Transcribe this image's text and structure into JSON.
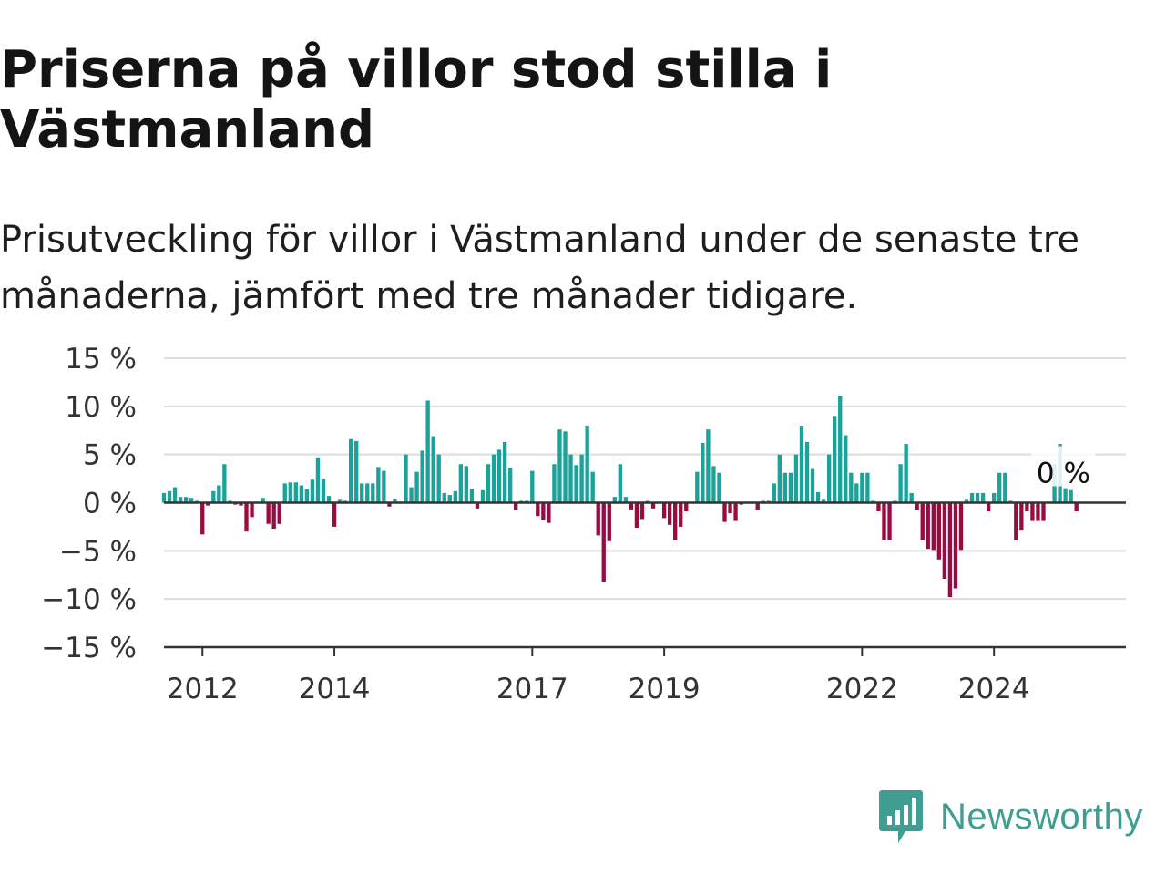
{
  "title": "Priserna på villor stod stilla i Västmanland",
  "subtitle": "Prisutveckling för villor i Västmanland under de senaste tre månaderna, jämfört med tre månader tidigare.",
  "brand": {
    "name": "Newsworthy",
    "color": "#3f9d92",
    "icon": "newsworthy-logo-icon"
  },
  "colors": {
    "positive": "#19a39a",
    "negative": "#9b0b3f",
    "grid": "#dddddd",
    "axis": "#333333"
  },
  "chart_data": {
    "type": "bar",
    "ylim": [
      -15,
      15
    ],
    "y_ticks": [
      "15 %",
      "10 %",
      "5 %",
      "0 %",
      "−5 %",
      "−10 %",
      "−15 %"
    ],
    "y_tick_values": [
      15,
      10,
      5,
      0,
      -5,
      -10,
      -15
    ],
    "x_ticks": [
      "2012",
      "2014",
      "2017",
      "2019",
      "2022",
      "2024"
    ],
    "x_tick_positions": [
      2012.0,
      2014.0,
      2017.0,
      2019.0,
      2022.0,
      2024.0
    ],
    "x_start": 2011.4167,
    "bar_step_months": 1,
    "grid": true,
    "annotation": {
      "text": "0 %",
      "x": 2024.6667,
      "y": 0
    },
    "values": [
      1.0,
      1.2,
      1.6,
      0.6,
      0.6,
      0.5,
      0.2,
      -3.3,
      -0.3,
      1.2,
      1.8,
      4.0,
      0.2,
      -0.2,
      -0.3,
      -3.0,
      -1.5,
      -0.1,
      0.5,
      -2.2,
      -2.7,
      -2.2,
      2.0,
      2.1,
      2.1,
      1.8,
      1.4,
      2.4,
      4.7,
      2.5,
      0.7,
      -2.5,
      0.3,
      0.2,
      6.6,
      6.4,
      2.0,
      2.0,
      2.0,
      3.7,
      3.3,
      -0.4,
      0.4,
      0.1,
      5.0,
      1.6,
      3.2,
      5.4,
      10.6,
      6.9,
      5.0,
      1.0,
      0.8,
      1.2,
      4.0,
      3.8,
      1.4,
      -0.6,
      1.3,
      4.0,
      5.0,
      5.5,
      6.3,
      3.6,
      -0.8,
      0.2,
      0.2,
      3.3,
      -1.4,
      -1.8,
      -2.1,
      4.0,
      7.6,
      7.4,
      5.0,
      3.9,
      5.0,
      8.0,
      3.2,
      -3.4,
      -8.2,
      -4.0,
      0.6,
      4.0,
      0.6,
      -0.7,
      -2.6,
      -1.7,
      0.2,
      -0.6,
      0.1,
      -1.6,
      -2.3,
      -3.9,
      -2.5,
      -0.9,
      0.1,
      3.2,
      6.2,
      7.6,
      3.8,
      3.1,
      -2.0,
      -1.1,
      -1.9,
      -0.2,
      0.1,
      0.0,
      -0.8,
      0.2,
      0.2,
      2.0,
      5.0,
      3.1,
      3.1,
      5.0,
      8.0,
      6.3,
      3.5,
      1.1,
      0.3,
      5.0,
      9.0,
      11.1,
      7.0,
      3.1,
      2.0,
      3.1,
      3.1,
      0.2,
      -0.9,
      -3.9,
      -3.9,
      0.2,
      4.0,
      6.1,
      1.0,
      -0.8,
      -3.9,
      -4.8,
      -4.9,
      -5.9,
      -7.9,
      -9.8,
      -8.9,
      -4.9,
      0.3,
      1.0,
      1.0,
      1.0,
      -0.9,
      1.0,
      3.1,
      3.1,
      0.2,
      -3.9,
      -2.9,
      -0.9,
      -1.9,
      -1.9,
      -1.9,
      0.1,
      4.0,
      6.1,
      1.5,
      1.3,
      -0.9,
      0.0
    ]
  }
}
